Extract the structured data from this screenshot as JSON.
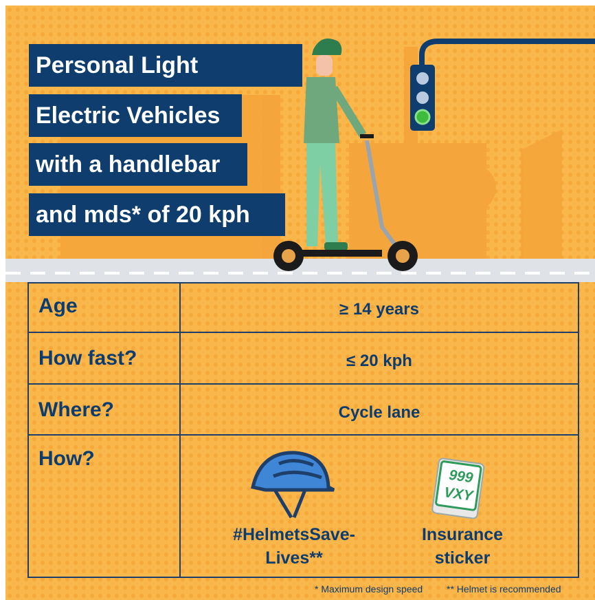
{
  "header": {
    "title_lines": [
      "Personal Light",
      "Electric Vehicles",
      "with a handlebar",
      "and mds* of 20 kph"
    ]
  },
  "table": {
    "rows": [
      [
        "Age",
        "≥ 14 years"
      ],
      [
        "How fast?",
        "≤ 20 kph"
      ],
      [
        "Where?",
        "Cycle lane"
      ]
    ],
    "how": {
      "label": "How?",
      "items": [
        {
          "caption_lines": [
            "#HelmetsSave-",
            "Lives**"
          ]
        },
        {
          "caption_lines": [
            "Insurance",
            "sticker"
          ],
          "plate_lines": [
            "999",
            "VXY"
          ]
        }
      ]
    }
  },
  "footnotes": [
    "* Maximum design speed",
    "** Helmet is recommended"
  ]
}
